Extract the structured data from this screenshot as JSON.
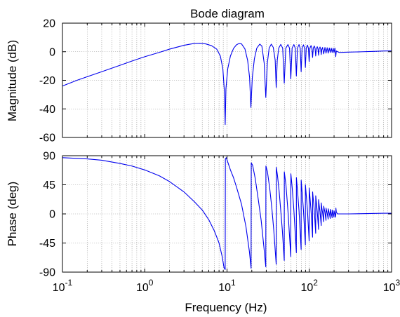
{
  "chart_data": [
    {
      "type": "line",
      "title": "Bode diagram",
      "xlabel": "",
      "ylabel": "Magnitude (dB)",
      "xscale": "log",
      "xlim": [
        0.1,
        1000
      ],
      "ylim": [
        -60,
        20
      ],
      "grid": true,
      "yticks": [
        20,
        0,
        -20,
        -40,
        -60
      ],
      "ytick_labels": [
        "20",
        "0",
        "-20",
        "-40",
        "-60"
      ],
      "series": [
        {
          "color": "#0000ee",
          "points": [
            [
              0.1,
              -24
            ],
            [
              0.15,
              -20
            ],
            [
              0.2,
              -17.5
            ],
            [
              0.3,
              -14
            ],
            [
              0.5,
              -9.5
            ],
            [
              0.7,
              -6.5
            ],
            [
              1,
              -3.5
            ],
            [
              1.5,
              -0.5
            ],
            [
              2,
              1.8
            ],
            [
              3,
              4.5
            ],
            [
              4,
              5.8
            ],
            [
              4.7,
              6
            ],
            [
              5.5,
              5.5
            ],
            [
              6.5,
              4.2
            ],
            [
              7.5,
              1.8
            ],
            [
              8.3,
              -3
            ],
            [
              8.9,
              -12
            ],
            [
              9.3,
              -28
            ],
            [
              9.5,
              -51
            ],
            [
              9.7,
              -26
            ],
            [
              10.2,
              -12
            ],
            [
              11,
              -3
            ],
            [
              12,
              2.3
            ],
            [
              13,
              4.8
            ],
            [
              14,
              5.8
            ],
            [
              15,
              5.5
            ],
            [
              16.5,
              2
            ],
            [
              17.8,
              -6
            ],
            [
              18.8,
              -18
            ],
            [
              19.5,
              -39
            ],
            [
              20.3,
              -18
            ],
            [
              21.5,
              -5
            ],
            [
              23,
              2.5
            ],
            [
              25,
              5.3
            ],
            [
              26.5,
              4
            ],
            [
              28.3,
              -8
            ],
            [
              29.6,
              -32
            ],
            [
              30.9,
              -8
            ],
            [
              32.5,
              2.5
            ],
            [
              34.5,
              5.3
            ],
            [
              36.5,
              3
            ],
            [
              38.5,
              -6
            ],
            [
              39.6,
              -25
            ],
            [
              40.8,
              -6
            ],
            [
              42.5,
              2.5
            ],
            [
              45,
              5.1
            ],
            [
              47.5,
              2.5
            ],
            [
              49.6,
              -22
            ],
            [
              51.8,
              2.5
            ],
            [
              55,
              5
            ],
            [
              57.5,
              2.5
            ],
            [
              59.6,
              -19
            ],
            [
              61.8,
              2.5
            ],
            [
              65,
              5
            ],
            [
              67.5,
              2.5
            ],
            [
              69.6,
              -17
            ],
            [
              71.8,
              2.5
            ],
            [
              75,
              5
            ],
            [
              77.5,
              2.5
            ],
            [
              79.6,
              -14
            ],
            [
              81.8,
              2.5
            ],
            [
              85,
              4.8
            ],
            [
              87.5,
              2.5
            ],
            [
              89.6,
              -11
            ],
            [
              91.8,
              2.5
            ],
            [
              95,
              4.6
            ],
            [
              97.5,
              2.5
            ],
            [
              99.6,
              -7
            ],
            [
              101.8,
              2.5
            ],
            [
              105,
              4.3
            ],
            [
              107.5,
              2.5
            ],
            [
              109.6,
              -4
            ],
            [
              111.8,
              2.5
            ],
            [
              115,
              4
            ],
            [
              117.5,
              2.5
            ],
            [
              119.6,
              -3
            ],
            [
              121.8,
              2
            ],
            [
              125,
              3.5
            ],
            [
              127.5,
              2
            ],
            [
              129.6,
              -2.5
            ],
            [
              131.8,
              2
            ],
            [
              135,
              3.3
            ],
            [
              137.5,
              2
            ],
            [
              139.6,
              -2
            ],
            [
              141.8,
              1.5
            ],
            [
              145,
              3
            ],
            [
              149.6,
              -1.5
            ],
            [
              155,
              3
            ],
            [
              159.6,
              -1
            ],
            [
              165,
              2.8
            ],
            [
              169.6,
              -1
            ],
            [
              175,
              2.6
            ],
            [
              179.6,
              -0.5
            ],
            [
              185,
              2.5
            ],
            [
              189.6,
              -0.5
            ],
            [
              195,
              2.4
            ],
            [
              199.6,
              -0.5
            ],
            [
              205,
              2.5
            ],
            [
              209.6,
              -3.5
            ],
            [
              213,
              0.5
            ],
            [
              230,
              -0.5
            ],
            [
              300,
              -0.3
            ],
            [
              450,
              0
            ],
            [
              600,
              0.2
            ],
            [
              800,
              0.5
            ],
            [
              1000,
              0.6
            ]
          ]
        }
      ]
    },
    {
      "type": "line",
      "title": "",
      "xlabel": "Frequency (Hz)",
      "ylabel": "Phase (deg)",
      "xscale": "log",
      "xlim": [
        0.1,
        1000
      ],
      "ylim": [
        -90,
        90
      ],
      "grid": true,
      "xticks": [
        0.1,
        1,
        10,
        100,
        1000
      ],
      "xtick_labels": [
        {
          "base": "10",
          "exp": "-1"
        },
        {
          "base": "10",
          "exp": "0"
        },
        {
          "base": "10",
          "exp": "1"
        },
        {
          "base": "10",
          "exp": "2"
        },
        {
          "base": "10",
          "exp": "3"
        }
      ],
      "yticks": [
        90,
        45,
        0,
        -45,
        -90
      ],
      "ytick_labels": [
        "90",
        "45",
        "0",
        "-45",
        "-90"
      ],
      "series": [
        {
          "color": "#0000ee",
          "points": [
            [
              0.1,
              87
            ],
            [
              0.2,
              85
            ],
            [
              0.3,
              83
            ],
            [
              0.5,
              78
            ],
            [
              0.7,
              74
            ],
            [
              1,
              68
            ],
            [
              1.5,
              59
            ],
            [
              2,
              50
            ],
            [
              3,
              34
            ],
            [
              4,
              19
            ],
            [
              5,
              6
            ],
            [
              6,
              -9
            ],
            [
              7,
              -26
            ],
            [
              8,
              -45
            ],
            [
              8.7,
              -65
            ],
            [
              9.2,
              -83
            ],
            [
              9.5,
              -86
            ],
            [
              9.55,
              85
            ],
            [
              9.8,
              87
            ],
            [
              11,
              68
            ],
            [
              12,
              56
            ],
            [
              13,
              42
            ],
            [
              15,
              15
            ],
            [
              17,
              -20
            ],
            [
              18.7,
              -58
            ],
            [
              19.6,
              -84
            ],
            [
              19.7,
              79
            ],
            [
              20.5,
              75
            ],
            [
              22,
              55
            ],
            [
              24,
              22
            ],
            [
              26,
              -10
            ],
            [
              28,
              -50
            ],
            [
              29.6,
              -82
            ],
            [
              29.7,
              74
            ],
            [
              31,
              65
            ],
            [
              33,
              40
            ],
            [
              35,
              10
            ],
            [
              37,
              -25
            ],
            [
              39.6,
              -78
            ],
            [
              39.7,
              72
            ],
            [
              41,
              60
            ],
            [
              43,
              35
            ],
            [
              45,
              5
            ],
            [
              47,
              -25
            ],
            [
              49.6,
              -72
            ],
            [
              49.7,
              65
            ],
            [
              52,
              45
            ],
            [
              55,
              5
            ],
            [
              59.6,
              -66
            ],
            [
              59.7,
              62
            ],
            [
              62,
              40
            ],
            [
              65,
              5
            ],
            [
              69.6,
              -60
            ],
            [
              69.7,
              56
            ],
            [
              72,
              35
            ],
            [
              75,
              5
            ],
            [
              79.6,
              -55
            ],
            [
              79.7,
              52
            ],
            [
              82,
              32
            ],
            [
              85,
              5
            ],
            [
              89.6,
              -48
            ],
            [
              89.7,
              45
            ],
            [
              92,
              28
            ],
            [
              95,
              5
            ],
            [
              99.6,
              -42
            ],
            [
              99.7,
              40
            ],
            [
              102,
              25
            ],
            [
              105,
              5
            ],
            [
              109.6,
              -36
            ],
            [
              109.7,
              34
            ],
            [
              112,
              22
            ],
            [
              115,
              5
            ],
            [
              119.6,
              -30
            ],
            [
              119.7,
              28
            ],
            [
              122,
              17
            ],
            [
              125,
              3
            ],
            [
              129.6,
              -24
            ],
            [
              129.7,
              22
            ],
            [
              132,
              13
            ],
            [
              135,
              3
            ],
            [
              139.6,
              -18
            ],
            [
              139.7,
              17
            ],
            [
              142,
              9
            ],
            [
              145,
              2
            ],
            [
              149.6,
              -12
            ],
            [
              149.7,
              12
            ],
            [
              155,
              2
            ],
            [
              159.6,
              -10
            ],
            [
              159.7,
              9
            ],
            [
              165,
              1
            ],
            [
              169.6,
              -8
            ],
            [
              169.7,
              8
            ],
            [
              175,
              1
            ],
            [
              179.6,
              -7
            ],
            [
              179.7,
              7
            ],
            [
              185,
              0
            ],
            [
              189.6,
              -6
            ],
            [
              189.7,
              6
            ],
            [
              195,
              0
            ],
            [
              199.6,
              -5
            ],
            [
              199.7,
              5
            ],
            [
              205,
              0
            ],
            [
              209.6,
              -5
            ],
            [
              210.5,
              9
            ],
            [
              213,
              3
            ],
            [
              220,
              0
            ],
            [
              300,
              0
            ],
            [
              500,
              0.5
            ],
            [
              800,
              1
            ],
            [
              1000,
              1
            ]
          ]
        }
      ]
    }
  ]
}
